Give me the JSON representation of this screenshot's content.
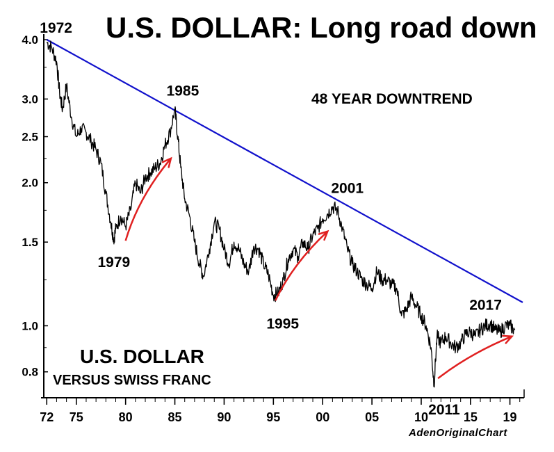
{
  "chart_data": {
    "type": "line",
    "title": "U.S. DOLLAR: Long road down",
    "subtitle": "48 YEAR DOWNTREND",
    "series_name": "U.S. DOLLAR",
    "series_sub": "VERSUS SWISS FRANC",
    "credit": "AdenOriginalChart",
    "y_scale": "log",
    "ylim": [
      0.72,
      4.0
    ],
    "yticks": [
      4.0,
      3.0,
      2.5,
      2.0,
      1.5,
      1.0,
      0.8
    ],
    "ytick_labels": [
      "4.0",
      "3.0",
      "2.5",
      "2.0",
      "1.5",
      "1.0",
      "0.8"
    ],
    "xlim": [
      1971.7,
      2020.3
    ],
    "xticks": [
      1972,
      1975,
      1980,
      1985,
      1990,
      1995,
      2000,
      2005,
      2010,
      2015,
      2019
    ],
    "xtick_labels": [
      "72",
      "75",
      "80",
      "85",
      "90",
      "95",
      "00",
      "05",
      "10",
      "15",
      "19"
    ],
    "series": [
      {
        "name": "USD/CHF",
        "x": [
          1972,
          1972.5,
          1973,
          1973.3,
          1973.6,
          1974,
          1974.5,
          1975,
          1975.5,
          1976,
          1976.5,
          1977,
          1977.5,
          1978,
          1978.5,
          1978.8,
          1979,
          1979.5,
          1980,
          1980.5,
          1981,
          1981.5,
          1982,
          1982.5,
          1983,
          1983.5,
          1984,
          1984.5,
          1985,
          1985.3,
          1985.6,
          1986,
          1986.5,
          1987,
          1987.5,
          1987.9,
          1988.5,
          1989,
          1989.5,
          1990,
          1990.5,
          1991,
          1991.5,
          1992,
          1992.5,
          1993,
          1993.5,
          1994,
          1994.5,
          1995,
          1995.5,
          1996,
          1996.5,
          1997,
          1997.5,
          1998,
          1998.5,
          1999,
          1999.5,
          2000,
          2000.5,
          2001,
          2001.5,
          2002,
          2002.5,
          2003,
          2003.5,
          2004,
          2004.5,
          2005,
          2005.5,
          2006,
          2006.5,
          2007,
          2007.5,
          2008,
          2008.5,
          2009,
          2009.5,
          2010,
          2010.5,
          2011,
          2011.3,
          2011.6,
          2012,
          2012.5,
          2013,
          2013.5,
          2014,
          2014.5,
          2015,
          2015.5,
          2016,
          2016.5,
          2017,
          2017.5,
          2018,
          2018.5,
          2019,
          2019.5
        ],
        "values": [
          3.95,
          3.85,
          3.6,
          3.1,
          2.85,
          3.2,
          2.75,
          2.5,
          2.6,
          2.55,
          2.45,
          2.35,
          2.2,
          1.9,
          1.65,
          1.52,
          1.6,
          1.7,
          1.62,
          1.75,
          2.0,
          1.9,
          2.05,
          2.1,
          2.15,
          2.2,
          2.4,
          2.55,
          2.85,
          2.5,
          2.15,
          1.85,
          1.7,
          1.5,
          1.35,
          1.27,
          1.45,
          1.65,
          1.6,
          1.45,
          1.35,
          1.5,
          1.45,
          1.35,
          1.3,
          1.47,
          1.45,
          1.35,
          1.28,
          1.16,
          1.17,
          1.25,
          1.38,
          1.45,
          1.4,
          1.5,
          1.45,
          1.55,
          1.6,
          1.68,
          1.72,
          1.78,
          1.75,
          1.6,
          1.45,
          1.35,
          1.3,
          1.25,
          1.22,
          1.2,
          1.3,
          1.25,
          1.25,
          1.22,
          1.2,
          1.05,
          1.08,
          1.15,
          1.1,
          1.05,
          1.0,
          0.9,
          0.75,
          0.95,
          0.92,
          0.95,
          0.92,
          0.9,
          0.92,
          0.96,
          0.97,
          0.95,
          0.98,
          1.0,
          1.01,
          0.98,
          0.97,
          1.0,
          1.0,
          0.98
        ]
      }
    ],
    "trendline": {
      "x": [
        1972,
        2020.3
      ],
      "values": [
        4.0,
        1.12
      ],
      "color": "#1111cc",
      "label": "48 YEAR DOWNTREND"
    },
    "arrows": [
      {
        "from": [
          1980,
          1.51
        ],
        "to": [
          1984.6,
          2.25
        ]
      },
      {
        "from": [
          1995.2,
          1.13
        ],
        "to": [
          2000.5,
          1.58
        ]
      },
      {
        "from": [
          2011.7,
          0.775
        ],
        "to": [
          2019.2,
          0.95
        ]
      }
    ],
    "annotations": [
      {
        "text": "1972",
        "x": 1972,
        "y": 4.0
      },
      {
        "text": "1985",
        "x": 1985,
        "y": 2.85
      },
      {
        "text": "1979",
        "x": 1979,
        "y": 1.52
      },
      {
        "text": "2001",
        "x": 2001,
        "y": 1.78
      },
      {
        "text": "1995",
        "x": 1995,
        "y": 1.16
      },
      {
        "text": "2017",
        "x": 2017,
        "y": 1.01
      },
      {
        "text": "2011",
        "x": 2011,
        "y": 0.75
      }
    ],
    "line_color": "#000000",
    "arrow_color": "#e02020"
  }
}
